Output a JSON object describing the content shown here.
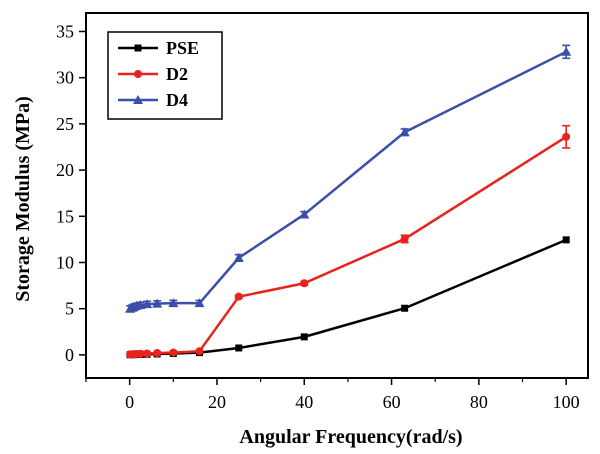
{
  "chart_data": {
    "type": "line",
    "title": "",
    "xlabel": "Angular Frequency(rad/s)",
    "ylabel": "Storage Modulus (MPa)",
    "xlim": [
      -10,
      105
    ],
    "ylim": [
      -2.5,
      37
    ],
    "xticks": [
      0,
      20,
      40,
      60,
      80,
      100
    ],
    "yticks": [
      0,
      5,
      10,
      15,
      20,
      25,
      30,
      35
    ],
    "xtick_labels": [
      "0",
      "20",
      "40",
      "60",
      "80",
      "100"
    ],
    "ytick_labels": [
      "0",
      "5",
      "10",
      "15",
      "20",
      "25",
      "30",
      "35"
    ],
    "grid": false,
    "legend_position": "top-left",
    "series": [
      {
        "name": "PSE",
        "color": "#000000",
        "marker": "square",
        "x": [
          0.1,
          0.6,
          1,
          1.6,
          2.5,
          4,
          6.3,
          10,
          16,
          25,
          40,
          63,
          100
        ],
        "y": [
          0.02,
          0.03,
          0.03,
          0.04,
          0.05,
          0.07,
          0.1,
          0.15,
          0.25,
          0.75,
          1.95,
          5.05,
          12.45
        ],
        "error": [
          0,
          0,
          0,
          0,
          0,
          0,
          0,
          0,
          0,
          0,
          0,
          0,
          0
        ]
      },
      {
        "name": "D2",
        "color": "#e8221c",
        "marker": "circle",
        "x": [
          0.1,
          0.6,
          1,
          1.6,
          2.5,
          4,
          6.3,
          10,
          16,
          25,
          40,
          63,
          100
        ],
        "y": [
          0.05,
          0.07,
          0.08,
          0.1,
          0.12,
          0.15,
          0.2,
          0.25,
          0.4,
          6.3,
          7.75,
          12.55,
          23.6
        ],
        "error": [
          0,
          0,
          0,
          0,
          0,
          0,
          0,
          0,
          0,
          0.15,
          0.2,
          0.4,
          1.2
        ]
      },
      {
        "name": "D4",
        "color": "#3b4fa8",
        "marker": "triangle",
        "x": [
          0.1,
          0.6,
          1,
          1.6,
          2.5,
          4,
          6.3,
          10,
          16,
          25,
          40,
          63,
          100
        ],
        "y": [
          5.0,
          5.1,
          5.2,
          5.3,
          5.4,
          5.5,
          5.55,
          5.6,
          5.6,
          10.5,
          15.2,
          24.1,
          32.8
        ],
        "error": [
          0.3,
          0.3,
          0.3,
          0.3,
          0.3,
          0.3,
          0.3,
          0.3,
          0.3,
          0.35,
          0.3,
          0.35,
          0.7
        ]
      }
    ]
  }
}
